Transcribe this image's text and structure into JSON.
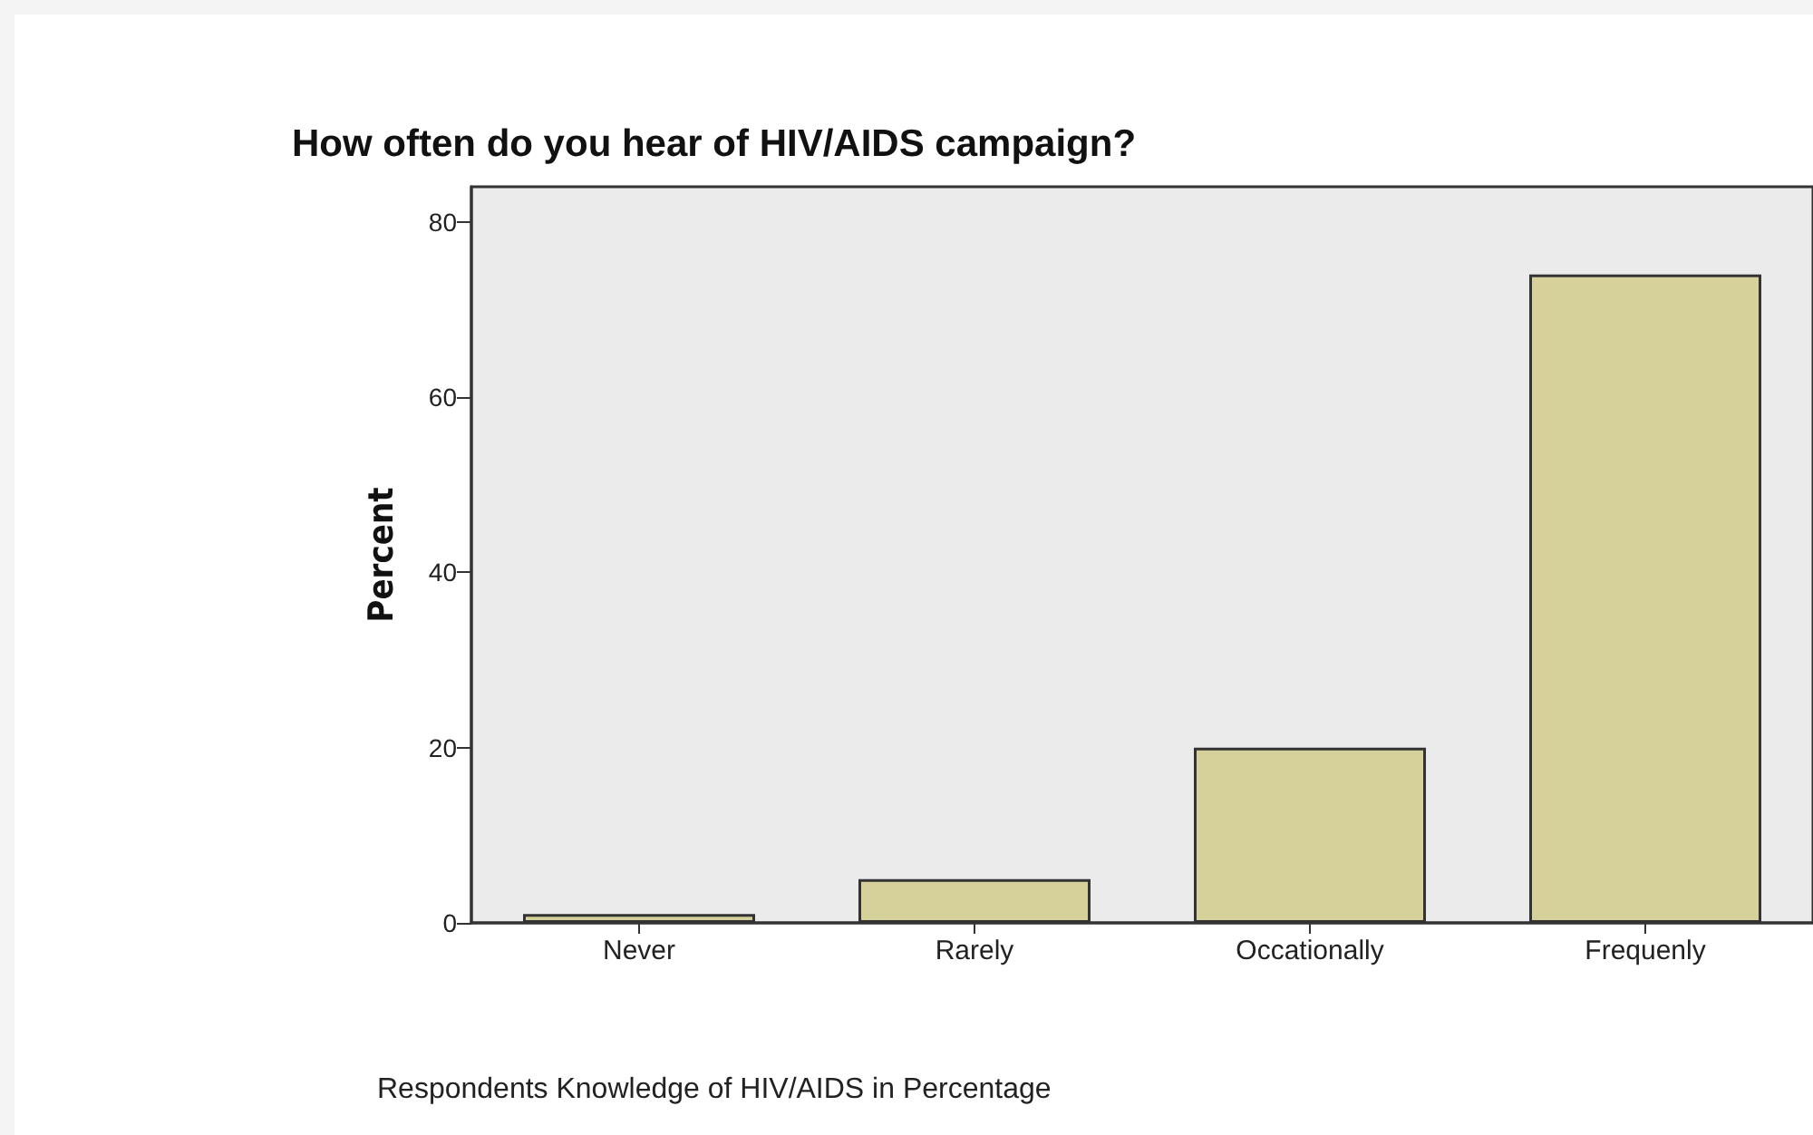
{
  "chart_data": {
    "type": "bar",
    "title": "How often do you hear of HIV/AIDS campaign?",
    "ylabel": "Percent",
    "categories": [
      "Never",
      "Rarely",
      "Occationally",
      "Frequenly"
    ],
    "values": [
      1,
      5,
      20,
      74
    ],
    "color": "#d6d09b",
    "ylim": [
      0,
      84
    ],
    "yticks": [
      0,
      20,
      40,
      60,
      80
    ],
    "grid": false,
    "annotations": [
      "Respondents Knowledge of HIV/AIDS in Percentage"
    ]
  }
}
